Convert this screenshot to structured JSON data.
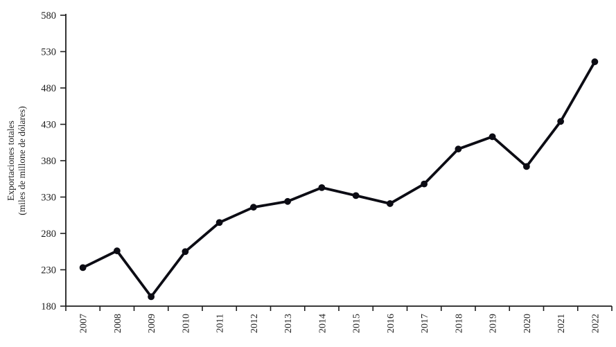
{
  "chart_data": {
    "type": "line",
    "title": "",
    "categories": [
      "2007",
      "2008",
      "2009",
      "2010",
      "2011",
      "2012",
      "2013",
      "2014",
      "2015",
      "2016",
      "2017",
      "2018",
      "2019",
      "2020",
      "2021",
      "2022"
    ],
    "series": [
      {
        "name": "Exportaciones totales",
        "values": [
          233,
          256,
          193,
          255,
          295,
          316,
          324,
          343,
          332,
          321,
          348,
          396,
          413,
          372,
          434,
          516
        ]
      }
    ],
    "xlabel": "",
    "ylabel_line1": "Exportaciones totales",
    "ylabel_line2": "(miles de millone de dólares)",
    "ylim": [
      180,
      580
    ],
    "yticks": [
      180,
      230,
      280,
      330,
      380,
      430,
      480,
      530,
      580
    ],
    "grid": false,
    "legend": "none",
    "marker": "filled-circle",
    "line_color": "#0c0c14",
    "marker_color": "#0c0c14",
    "axis_color": "#1e1e1e",
    "text_color": "#1e1e1e",
    "background_color": "#ffffff"
  }
}
